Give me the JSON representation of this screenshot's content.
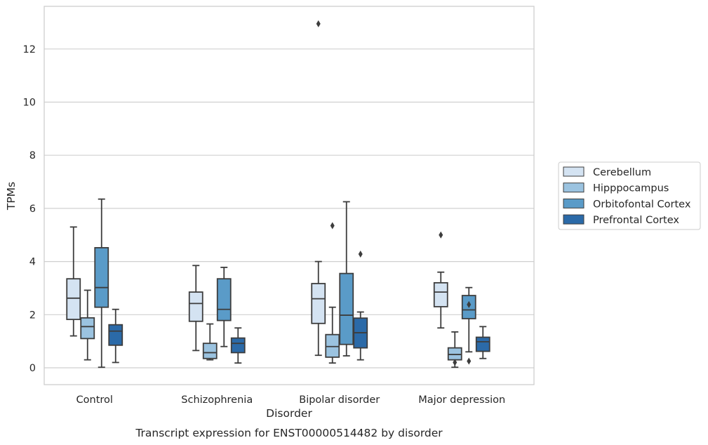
{
  "chart_data": {
    "type": "box",
    "caption": "Transcript expression for ENST00000514482 by disorder",
    "xlabel": "Disorder",
    "ylabel": "TPMs",
    "ylim": [
      -0.6,
      13.6
    ],
    "yticks": [
      0,
      2,
      4,
      6,
      8,
      10,
      12
    ],
    "grid": "horizontal",
    "legend_position": "right",
    "categories": [
      "Control",
      "Schizophrenia",
      "Bipolar disorder",
      "Major depression"
    ],
    "series": [
      {
        "name": "Cerebellum",
        "color": "#d4e3f2",
        "boxes": [
          {
            "whisker_low": 1.2,
            "q1": 1.82,
            "median": 2.62,
            "q3": 3.35,
            "whisker_high": 5.3,
            "outliers": []
          },
          {
            "whisker_low": 0.65,
            "q1": 1.75,
            "median": 2.42,
            "q3": 2.85,
            "whisker_high": 3.85,
            "outliers": []
          },
          {
            "whisker_low": 0.47,
            "q1": 1.67,
            "median": 2.6,
            "q3": 3.17,
            "whisker_high": 4.0,
            "outliers": [
              12.95
            ]
          },
          {
            "whisker_low": 1.5,
            "q1": 2.3,
            "median": 2.85,
            "q3": 3.2,
            "whisker_high": 3.6,
            "outliers": [
              5.0
            ]
          }
        ]
      },
      {
        "name": "Hipppocampus",
        "color": "#9bc3e0",
        "boxes": [
          {
            "whisker_low": 0.3,
            "q1": 1.1,
            "median": 1.55,
            "q3": 1.88,
            "whisker_high": 2.92,
            "outliers": []
          },
          {
            "whisker_low": 0.3,
            "q1": 0.35,
            "median": 0.57,
            "q3": 0.92,
            "whisker_high": 1.65,
            "outliers": []
          },
          {
            "whisker_low": 0.18,
            "q1": 0.4,
            "median": 0.8,
            "q3": 1.25,
            "whisker_high": 2.28,
            "outliers": [
              5.35
            ]
          },
          {
            "whisker_low": 0.02,
            "q1": 0.3,
            "median": 0.5,
            "q3": 0.75,
            "whisker_high": 1.35,
            "outliers": [
              0.2
            ]
          }
        ]
      },
      {
        "name": "Orbitofontal Cortex",
        "color": "#5a9bc8",
        "boxes": [
          {
            "whisker_low": 0.02,
            "q1": 2.28,
            "median": 3.02,
            "q3": 4.52,
            "whisker_high": 6.35,
            "outliers": []
          },
          {
            "whisker_low": 0.8,
            "q1": 1.78,
            "median": 2.2,
            "q3": 3.35,
            "whisker_high": 3.78,
            "outliers": []
          },
          {
            "whisker_low": 0.45,
            "q1": 0.88,
            "median": 1.98,
            "q3": 3.55,
            "whisker_high": 6.25,
            "outliers": []
          },
          {
            "whisker_low": 0.6,
            "q1": 1.85,
            "median": 2.18,
            "q3": 2.72,
            "whisker_high": 3.02,
            "outliers": [
              2.38,
              0.25
            ]
          }
        ]
      },
      {
        "name": "Prefrontal Cortex",
        "color": "#2b6aa8",
        "boxes": [
          {
            "whisker_low": 0.2,
            "q1": 0.85,
            "median": 1.38,
            "q3": 1.62,
            "whisker_high": 2.2,
            "outliers": []
          },
          {
            "whisker_low": 0.18,
            "q1": 0.57,
            "median": 0.92,
            "q3": 1.12,
            "whisker_high": 1.5,
            "outliers": []
          },
          {
            "whisker_low": 0.3,
            "q1": 0.75,
            "median": 1.32,
            "q3": 1.87,
            "whisker_high": 2.1,
            "outliers": [
              4.28
            ]
          },
          {
            "whisker_low": 0.35,
            "q1": 0.62,
            "median": 0.98,
            "q3": 1.15,
            "whisker_high": 1.55,
            "outliers": []
          }
        ]
      }
    ]
  }
}
